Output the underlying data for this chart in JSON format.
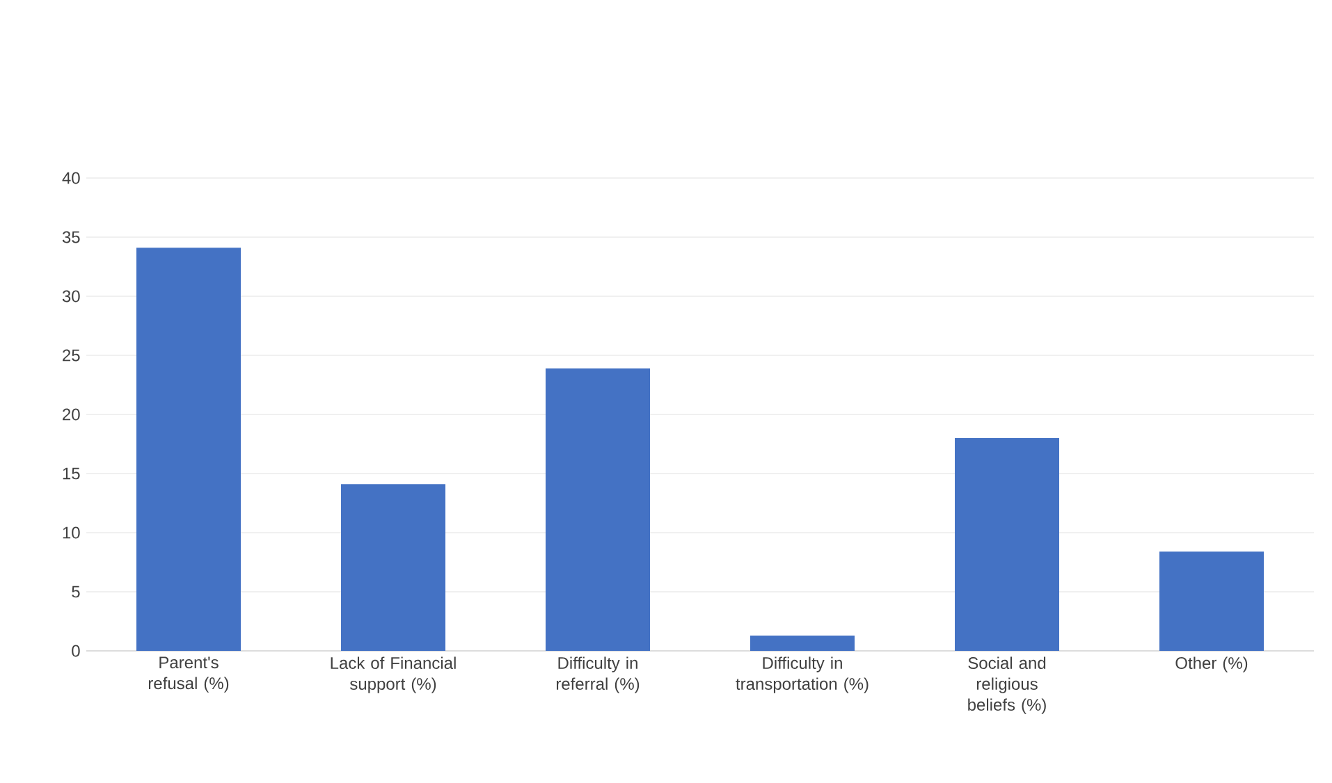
{
  "chart_data": {
    "type": "bar",
    "categories": [
      "Parent's refusal (%)",
      "Lack of Financial support (%)",
      "Difficulty in referral (%)",
      "Difficulty in transportation (%)",
      "Social and religious beliefs (%)",
      "Other (%)"
    ],
    "values": [
      34.1,
      14.1,
      23.9,
      1.3,
      18.0,
      8.4
    ],
    "color": "#4472c4",
    "ylim": [
      0,
      40
    ],
    "yticks": [
      0,
      5,
      10,
      15,
      20,
      25,
      30,
      35,
      40
    ],
    "grid": "y"
  }
}
